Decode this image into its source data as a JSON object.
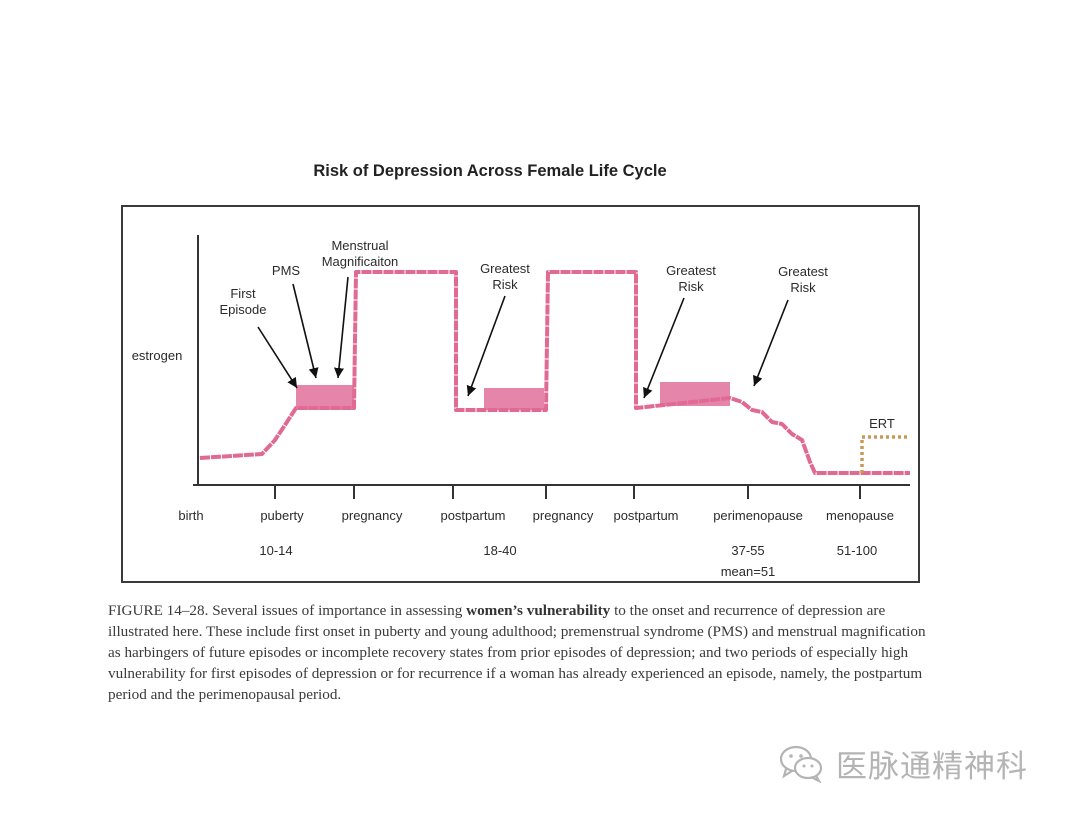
{
  "chart_data": {
    "type": "line",
    "title": "Risk of Depression Across Female Life Cycle",
    "ylabel": "estrogen",
    "x_ticks": [
      {
        "label": "birth",
        "range": ""
      },
      {
        "label": "puberty",
        "range": "10-14"
      },
      {
        "label": "pregnancy",
        "range": ""
      },
      {
        "label": "postpartum",
        "range": "18-40"
      },
      {
        "label": "pregnancy",
        "range": ""
      },
      {
        "label": "postpartum",
        "range": ""
      },
      {
        "label": "perimenopause",
        "range": "37-55"
      },
      {
        "label": "menopause",
        "range": "51-100"
      }
    ],
    "perimenopause_mean": "mean=51",
    "series": [
      {
        "name": "",
        "color": "#e06a92",
        "style": "solid"
      },
      {
        "name": "ERT",
        "color": "#c89a55",
        "style": "dotted"
      }
    ],
    "annotations": [
      {
        "label": "First\nEpisode"
      },
      {
        "label": "PMS"
      },
      {
        "label": "Menstrual\nMagnificaiton"
      },
      {
        "label": "Greatest\nRisk"
      },
      {
        "label": "Greatest\nRisk"
      },
      {
        "label": "Greatest\nRisk"
      },
      {
        "label": "ERT"
      }
    ],
    "grid": false,
    "legend": "none"
  },
  "caption": {
    "prefix": "FIGURE 14–28. Several issues of importance in assessing ",
    "bold": "women’s vulnerability",
    "suffix": " to the onset and recurrence of depression are illustrated here. These include first onset in puberty and young adulthood; premenstrual syndrome (PMS) and menstrual magnification as harbingers of future episodes or incomplete recovery states from prior episodes of depression; and two periods of especially high vulnerability for first episodes of depression or for recurrence if a woman has already experienced an episode, namely, the postpartum period and the perimenopausal period."
  },
  "watermark": {
    "text": "医脉通精神科",
    "icon": "wechat-icon",
    "color": "#b4b4b4"
  }
}
